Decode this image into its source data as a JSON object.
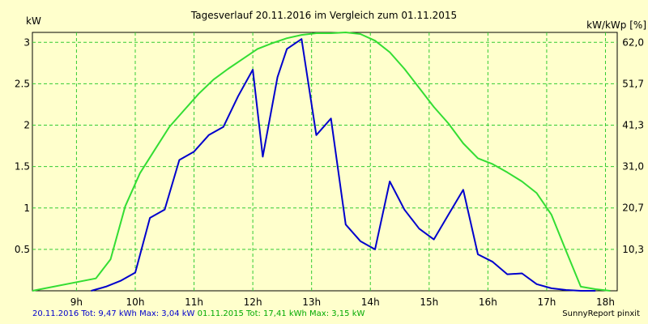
{
  "chart_data": {
    "type": "line",
    "title": "Tagesverlauf 20.11.2016 im Vergleich zum 01.11.2015",
    "ylabel_left": "kW",
    "ylabel_right": "kW/kWp [%]",
    "xlim": [
      8.25,
      18.2
    ],
    "ylim_left": [
      0,
      3.12
    ],
    "ylim_right": [
      0,
      64.5
    ],
    "x_ticks": [
      9,
      10,
      11,
      12,
      13,
      14,
      15,
      16,
      17,
      18
    ],
    "x_tick_labels": [
      "9h",
      "10h",
      "11h",
      "12h",
      "13h",
      "14h",
      "15h",
      "16h",
      "17h",
      "18h"
    ],
    "y_ticks_left": [
      0.5,
      1,
      1.5,
      2,
      2.5,
      3
    ],
    "y_tick_labels_left": [
      "0.5",
      "1",
      "1.5",
      "2",
      "2.5",
      "3"
    ],
    "y_ticks_right": [
      10.3,
      20.7,
      31.0,
      41.3,
      51.7,
      62.0
    ],
    "y_tick_labels_right": [
      "10,3",
      "20,7",
      "31,0",
      "41,3",
      "51,7",
      "62,0"
    ],
    "grid": true,
    "series": [
      {
        "name": "20.11.2016",
        "color": "#0000cc",
        "x": [
          9.25,
          9.5,
          9.75,
          10.0,
          10.25,
          10.5,
          10.75,
          11.0,
          11.25,
          11.5,
          11.75,
          12.0,
          12.17,
          12.42,
          12.58,
          12.83,
          13.08,
          13.33,
          13.58,
          13.83,
          14.08,
          14.33,
          14.58,
          14.83,
          15.08,
          15.33,
          15.58,
          15.83,
          16.08,
          16.33,
          16.58,
          16.83,
          17.08,
          17.33,
          17.58,
          17.83
        ],
        "y": [
          0.0,
          0.05,
          0.12,
          0.22,
          0.88,
          0.98,
          1.58,
          1.68,
          1.88,
          1.98,
          2.35,
          2.67,
          1.62,
          2.58,
          2.92,
          3.04,
          1.88,
          2.08,
          0.8,
          0.6,
          0.5,
          1.32,
          0.98,
          0.75,
          0.62,
          0.92,
          1.22,
          0.44,
          0.35,
          0.2,
          0.21,
          0.08,
          0.03,
          0.01,
          0.0,
          0.0
        ]
      },
      {
        "name": "01.11.2015",
        "color": "#33dd33",
        "x": [
          8.25,
          9.33,
          9.58,
          9.83,
          10.08,
          10.33,
          10.58,
          10.83,
          11.08,
          11.33,
          11.58,
          11.83,
          12.08,
          12.33,
          12.58,
          12.83,
          13.08,
          13.33,
          13.58,
          13.83,
          14.08,
          14.33,
          14.58,
          14.83,
          15.08,
          15.33,
          15.58,
          15.83,
          16.08,
          16.33,
          16.58,
          16.83,
          17.08,
          17.33,
          17.58,
          17.83,
          18.08
        ],
        "y": [
          0.0,
          0.15,
          0.38,
          1.02,
          1.42,
          1.7,
          1.98,
          2.18,
          2.38,
          2.55,
          2.68,
          2.8,
          2.92,
          2.99,
          3.05,
          3.09,
          3.11,
          3.11,
          3.12,
          3.1,
          3.02,
          2.88,
          2.68,
          2.45,
          2.22,
          2.02,
          1.78,
          1.6,
          1.53,
          1.43,
          1.32,
          1.18,
          0.92,
          0.48,
          0.05,
          0.02,
          0.0
        ]
      }
    ]
  },
  "footer": {
    "blue_text": "20.11.2016 Tot: 9,47 kWh Max: 3,04 kW",
    "green_text": "01.11.2015 Tot: 17,41 kWh Max: 3,15 kW",
    "credit": "SunnyReport pinxit"
  }
}
